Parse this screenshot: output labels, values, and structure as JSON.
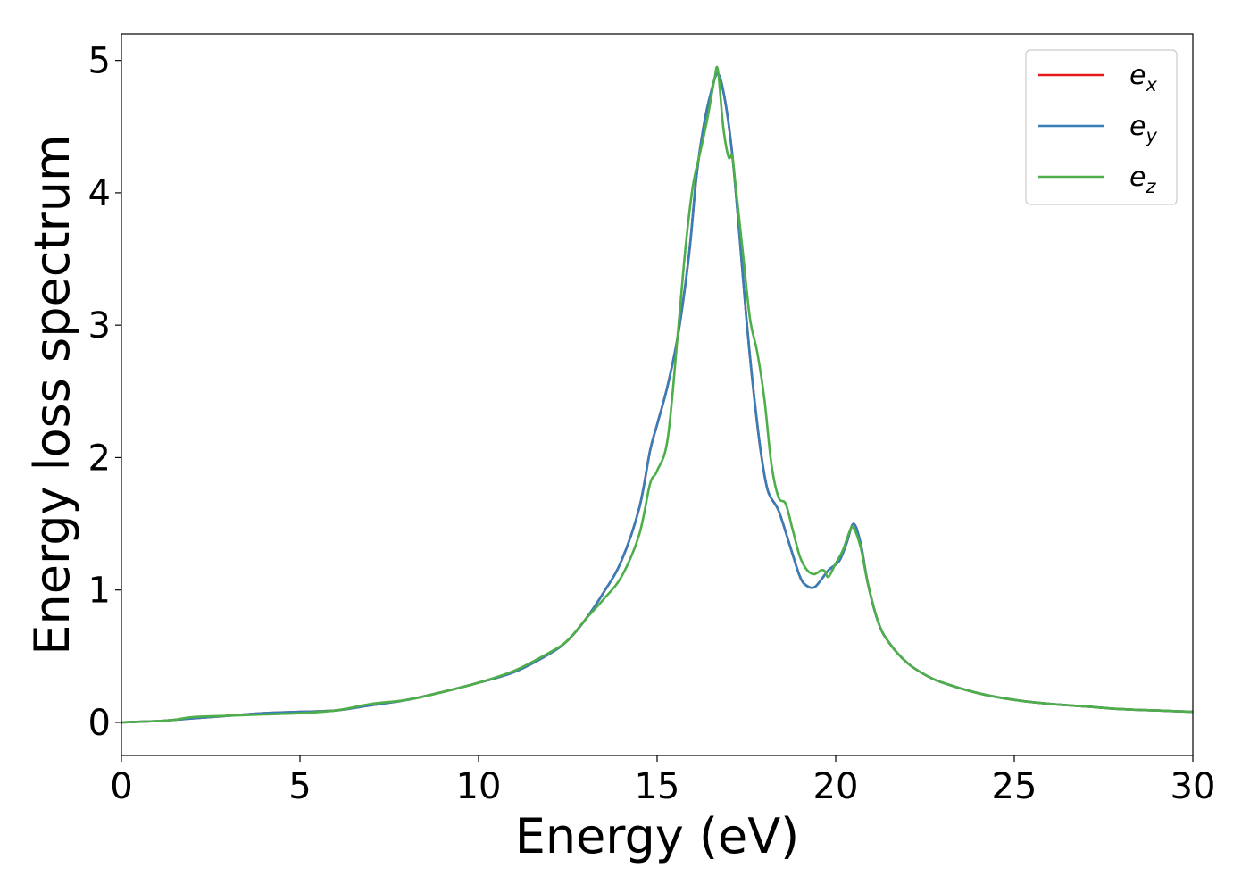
{
  "chart_data": {
    "type": "line",
    "xlabel": "Energy (eV)",
    "ylabel": "Energy loss spectrum",
    "xlim": [
      0,
      30
    ],
    "ylim": [
      -0.25,
      5.2
    ],
    "x_ticks": [
      "0",
      "5",
      "10",
      "15",
      "20",
      "25",
      "30"
    ],
    "y_ticks": [
      "0",
      "1",
      "2",
      "3",
      "4",
      "5"
    ],
    "grid": false,
    "legend_position": "top-right",
    "series": [
      {
        "name": "e_x",
        "legend_base": "e",
        "legend_sub": "x",
        "color": "#e41a1c",
        "x": [
          0,
          1,
          1.5,
          2,
          3,
          4,
          5,
          6,
          7,
          8,
          9,
          10,
          11,
          12,
          12.5,
          13,
          13.5,
          14,
          14.5,
          14.8,
          15,
          15.3,
          15.6,
          15.9,
          16.1,
          16.3,
          16.5,
          16.7,
          16.9,
          17.1,
          17.3,
          17.5,
          17.7,
          17.9,
          18.1,
          18.4,
          18.7,
          19,
          19.2,
          19.4,
          19.6,
          19.8,
          20.1,
          20.3,
          20.5,
          20.7,
          20.9,
          21.2,
          21.5,
          22,
          22.5,
          23,
          24,
          25,
          26,
          27,
          28,
          29,
          30
        ],
        "y": [
          0,
          0.01,
          0.02,
          0.03,
          0.05,
          0.07,
          0.08,
          0.09,
          0.13,
          0.17,
          0.23,
          0.3,
          0.38,
          0.52,
          0.62,
          0.78,
          0.98,
          1.22,
          1.62,
          2.05,
          2.25,
          2.55,
          2.95,
          3.55,
          4.12,
          4.5,
          4.75,
          4.9,
          4.7,
          4.3,
          3.7,
          3.05,
          2.5,
          2.05,
          1.75,
          1.6,
          1.35,
          1.1,
          1.03,
          1.02,
          1.08,
          1.15,
          1.22,
          1.35,
          1.5,
          1.35,
          1.05,
          0.75,
          0.6,
          0.45,
          0.36,
          0.3,
          0.22,
          0.17,
          0.14,
          0.12,
          0.1,
          0.09,
          0.08
        ]
      },
      {
        "name": "e_y",
        "legend_base": "e",
        "legend_sub": "y",
        "color": "#377eb8",
        "x": [
          0,
          1,
          1.5,
          2,
          3,
          4,
          5,
          6,
          7,
          8,
          9,
          10,
          11,
          12,
          12.5,
          13,
          13.5,
          14,
          14.5,
          14.8,
          15,
          15.3,
          15.6,
          15.9,
          16.1,
          16.3,
          16.5,
          16.7,
          16.9,
          17.1,
          17.3,
          17.5,
          17.7,
          17.9,
          18.1,
          18.4,
          18.7,
          19,
          19.2,
          19.4,
          19.6,
          19.8,
          20.1,
          20.3,
          20.5,
          20.7,
          20.9,
          21.2,
          21.5,
          22,
          22.5,
          23,
          24,
          25,
          26,
          27,
          28,
          29,
          30
        ],
        "y": [
          0,
          0.01,
          0.02,
          0.03,
          0.05,
          0.07,
          0.08,
          0.09,
          0.13,
          0.17,
          0.23,
          0.3,
          0.38,
          0.52,
          0.62,
          0.78,
          0.98,
          1.22,
          1.62,
          2.05,
          2.25,
          2.55,
          2.95,
          3.55,
          4.12,
          4.5,
          4.75,
          4.9,
          4.7,
          4.3,
          3.7,
          3.05,
          2.5,
          2.05,
          1.75,
          1.6,
          1.35,
          1.1,
          1.03,
          1.02,
          1.08,
          1.15,
          1.22,
          1.35,
          1.5,
          1.35,
          1.05,
          0.75,
          0.6,
          0.45,
          0.36,
          0.3,
          0.22,
          0.17,
          0.14,
          0.12,
          0.1,
          0.09,
          0.08
        ]
      },
      {
        "name": "e_z",
        "legend_base": "e",
        "legend_sub": "z",
        "color": "#4daf4a",
        "x": [
          0,
          1,
          1.5,
          2,
          3,
          4,
          5,
          6,
          7,
          8,
          9,
          10,
          11,
          12,
          12.5,
          13,
          13.5,
          14,
          14.5,
          14.8,
          15,
          15.3,
          15.6,
          15.8,
          16,
          16.2,
          16.4,
          16.6,
          16.7,
          16.85,
          17,
          17.1,
          17.2,
          17.4,
          17.6,
          17.8,
          18,
          18.2,
          18.4,
          18.6,
          18.8,
          19,
          19.2,
          19.4,
          19.6,
          19.7,
          19.8,
          20,
          20.2,
          20.4,
          20.5,
          20.7,
          20.9,
          21.2,
          21.5,
          22,
          22.5,
          23,
          24,
          25,
          26,
          27,
          28,
          29,
          30
        ],
        "y": [
          0,
          0.01,
          0.02,
          0.04,
          0.05,
          0.06,
          0.07,
          0.09,
          0.14,
          0.17,
          0.23,
          0.3,
          0.39,
          0.53,
          0.62,
          0.78,
          0.93,
          1.1,
          1.42,
          1.8,
          1.9,
          2.15,
          3.0,
          3.6,
          4.05,
          4.3,
          4.55,
          4.85,
          4.93,
          4.5,
          4.27,
          4.28,
          4.05,
          3.55,
          3.05,
          2.8,
          2.45,
          1.95,
          1.7,
          1.65,
          1.45,
          1.25,
          1.15,
          1.12,
          1.15,
          1.14,
          1.1,
          1.2,
          1.3,
          1.45,
          1.47,
          1.32,
          1.05,
          0.75,
          0.6,
          0.45,
          0.36,
          0.3,
          0.22,
          0.17,
          0.14,
          0.12,
          0.1,
          0.09,
          0.08
        ]
      }
    ]
  }
}
